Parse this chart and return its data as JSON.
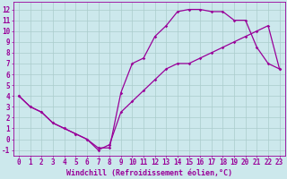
{
  "xlabel": "Windchill (Refroidissement éolien,°C)",
  "line1_x": [
    0,
    1,
    2,
    3,
    4,
    5,
    6,
    7,
    8,
    9,
    10,
    11,
    12,
    13,
    14,
    15,
    16,
    17,
    18,
    19,
    20,
    21,
    22,
    23
  ],
  "line1_y": [
    4,
    3,
    2.5,
    1.5,
    1.0,
    0.5,
    0.0,
    -0.8,
    -0.8,
    4.3,
    7.0,
    7.5,
    9.5,
    10.5,
    11.8,
    12.0,
    12.0,
    11.8,
    11.8,
    11.0,
    11.0,
    8.5,
    7.0,
    6.5
  ],
  "line2_x": [
    0,
    1,
    2,
    3,
    4,
    5,
    6,
    7,
    8,
    9,
    10,
    11,
    12,
    13,
    14,
    15,
    16,
    17,
    18,
    19,
    20,
    21,
    22,
    23
  ],
  "line2_y": [
    4,
    3,
    2.5,
    1.5,
    1.0,
    0.5,
    0.0,
    -1.0,
    -0.5,
    2.5,
    3.5,
    4.5,
    5.5,
    6.5,
    7.0,
    7.0,
    7.5,
    8.0,
    8.5,
    9.0,
    9.5,
    10.0,
    10.5,
    6.5
  ],
  "line_color": "#990099",
  "marker": "D",
  "markersize": 1.8,
  "linewidth": 0.9,
  "xlim": [
    -0.5,
    23.5
  ],
  "ylim": [
    -1.5,
    12.7
  ],
  "xticks": [
    0,
    1,
    2,
    3,
    4,
    5,
    6,
    7,
    8,
    9,
    10,
    11,
    12,
    13,
    14,
    15,
    16,
    17,
    18,
    19,
    20,
    21,
    22,
    23
  ],
  "yticks": [
    -1,
    0,
    1,
    2,
    3,
    4,
    5,
    6,
    7,
    8,
    9,
    10,
    11,
    12
  ],
  "bg_color": "#cce8ec",
  "grid_color": "#aacccc",
  "tick_fontsize": 5.5,
  "label_fontsize": 6.0
}
